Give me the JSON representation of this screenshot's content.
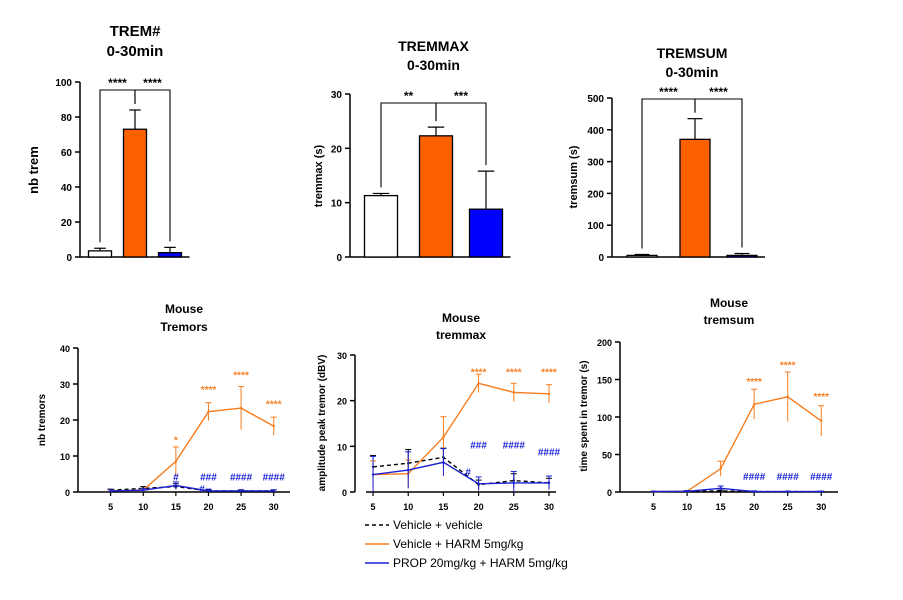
{
  "colors": {
    "vehicle": "#000000",
    "harm": "#f77d1f",
    "harm_bar": "#fd6000",
    "prop": "#1a20d3",
    "prop_bar": "#0000ff"
  },
  "legend": {
    "items": [
      {
        "label": "Vehicle + vehicle",
        "style": "dashed",
        "color_key": "vehicle"
      },
      {
        "label": "Vehicle + HARM 5mg/kg",
        "style": "solid",
        "color_key": "harm"
      },
      {
        "label": "PROP 20mg/kg + HARM 5mg/kg",
        "style": "solid",
        "color_key": "prop"
      }
    ]
  },
  "chart_data": [
    {
      "type": "bar",
      "title": "TREM#",
      "subtitle": "0-30min",
      "ylabel": "nb trem",
      "ylim": [
        0,
        100
      ],
      "yticks": [
        0,
        20,
        40,
        60,
        80,
        100
      ],
      "ytick_labels": [
        "0",
        "20",
        "40",
        "60",
        "80",
        "100"
      ],
      "bars": [
        {
          "value": 3.5,
          "error": 1.5,
          "color_key": "white"
        },
        {
          "value": 73,
          "error": 11,
          "color_key": "harm_bar"
        },
        {
          "value": 2.5,
          "error": 3,
          "color_key": "prop_bar"
        }
      ],
      "brackets": [
        {
          "from": 0,
          "to": 1,
          "label": "****"
        },
        {
          "from": 1,
          "to": 2,
          "label": "****"
        }
      ]
    },
    {
      "type": "bar",
      "title": "TREMMAX",
      "subtitle": "0-30min",
      "ylabel": "tremmax (s)",
      "ylim": [
        0,
        30
      ],
      "yticks": [
        0,
        10,
        20,
        30
      ],
      "ytick_labels": [
        "0",
        "10",
        "20",
        "30"
      ],
      "bars": [
        {
          "value": 11.3,
          "error": 0.4,
          "color_key": "white"
        },
        {
          "value": 22.3,
          "error": 1.6,
          "color_key": "harm_bar"
        },
        {
          "value": 8.8,
          "error": 7,
          "color_key": "prop_bar"
        }
      ],
      "brackets": [
        {
          "from": 0,
          "to": 1,
          "label": "**"
        },
        {
          "from": 1,
          "to": 2,
          "label": "***"
        }
      ]
    },
    {
      "type": "bar",
      "title": "TREMSUM",
      "subtitle": "0-30min",
      "ylabel": "tremsum (s)",
      "ylim": [
        0,
        500
      ],
      "yticks": [
        0,
        100,
        200,
        300,
        400,
        500
      ],
      "ytick_labels": [
        "0",
        "100",
        "200",
        "300",
        "400",
        "500"
      ],
      "bars": [
        {
          "value": 5,
          "error": 3,
          "color_key": "white"
        },
        {
          "value": 370,
          "error": 65,
          "color_key": "harm_bar"
        },
        {
          "value": 5,
          "error": 6,
          "color_key": "prop_bar"
        }
      ],
      "brackets": [
        {
          "from": 0,
          "to": 1,
          "label": "****"
        },
        {
          "from": 1,
          "to": 2,
          "label": "****"
        }
      ]
    },
    {
      "type": "line",
      "title": "Mouse",
      "subtitle": "Tremors",
      "ylabel": "nb tremors",
      "x": [
        5,
        10,
        15,
        20,
        25,
        30
      ],
      "xlim": [
        0,
        32.5
      ],
      "ylim": [
        0,
        40
      ],
      "xticks": [
        5,
        10,
        15,
        20,
        25,
        30
      ],
      "xtick_labels": [
        "5",
        "10",
        "15",
        "20",
        "25",
        "30"
      ],
      "yticks": [
        0,
        10,
        20,
        30,
        40
      ],
      "ytick_labels": [
        "0",
        "10",
        "20",
        "30",
        "40"
      ],
      "series": [
        {
          "color_key": "vehicle",
          "dashed": true,
          "values": [
            0.5,
            1,
            1.5,
            0.3,
            0.3,
            0.3
          ],
          "errors": [
            0.3,
            0.5,
            0.8,
            0.3,
            0.3,
            0.3
          ]
        },
        {
          "color_key": "harm",
          "dashed": false,
          "values": [
            0.3,
            0.5,
            8.5,
            22.3,
            23.3,
            18.3
          ],
          "errors": [
            0.3,
            0.5,
            4,
            2.5,
            6,
            2.5
          ]
        },
        {
          "color_key": "prop",
          "dashed": false,
          "values": [
            0.3,
            0.5,
            1.8,
            0.3,
            0.3,
            0.3
          ],
          "errors": [
            0.3,
            0.5,
            1,
            0.5,
            0.3,
            0.3
          ]
        }
      ],
      "annotations": [
        {
          "x": 15,
          "y": 13.5,
          "text": "*",
          "color_key": "harm"
        },
        {
          "x": 20,
          "y": 27.5,
          "text": "****",
          "color_key": "harm"
        },
        {
          "x": 25,
          "y": 31.5,
          "text": "****",
          "color_key": "harm"
        },
        {
          "x": 30,
          "y": 23.5,
          "text": "****",
          "color_key": "harm"
        },
        {
          "x": 15,
          "y": 3.2,
          "text": "#",
          "color_key": "prop"
        },
        {
          "x": 20,
          "y": 3.2,
          "text": "###",
          "color_key": "prop"
        },
        {
          "x": 25,
          "y": 3.2,
          "text": "####",
          "color_key": "prop"
        },
        {
          "x": 30,
          "y": 3.2,
          "text": "####",
          "color_key": "prop"
        },
        {
          "x": 19,
          "y": -0.2,
          "text": "#",
          "color_key": "prop"
        }
      ]
    },
    {
      "type": "line",
      "title": "Mouse",
      "subtitle": "tremmax",
      "ylabel": "amplitude peak tremor (dBV)",
      "x": [
        5,
        10,
        15,
        20,
        25,
        30
      ],
      "xlim": [
        4,
        31
      ],
      "ylim": [
        0,
        30
      ],
      "xticks": [
        5,
        10,
        15,
        20,
        25,
        30
      ],
      "xtick_labels": [
        "5",
        "10",
        "15",
        "20",
        "25",
        "30"
      ],
      "yticks": [
        0,
        10,
        20,
        30
      ],
      "ytick_labels": [
        "0",
        "10",
        "20",
        "30"
      ],
      "series": [
        {
          "color_key": "vehicle",
          "dashed": true,
          "values": [
            5.5,
            6.3,
            7.6,
            1.6,
            2.5,
            2.0
          ],
          "errors": [
            2.5,
            3,
            2,
            1,
            1.5,
            1
          ]
        },
        {
          "color_key": "harm",
          "dashed": false,
          "values": [
            3.8,
            4.0,
            12.0,
            23.8,
            21.8,
            21.5
          ],
          "errors": [
            3,
            3,
            4.5,
            2,
            2,
            2
          ]
        },
        {
          "color_key": "prop",
          "dashed": false,
          "values": [
            3.8,
            4.8,
            6.5,
            1.8,
            2.0,
            2.0
          ],
          "errors": [
            4,
            4,
            3,
            1.5,
            2.5,
            1.5
          ]
        }
      ],
      "annotations": [
        {
          "x": 20,
          "y": 25.5,
          "text": "****",
          "color_key": "harm"
        },
        {
          "x": 25,
          "y": 25.5,
          "text": "****",
          "color_key": "harm"
        },
        {
          "x": 30,
          "y": 25.5,
          "text": "****",
          "color_key": "harm"
        },
        {
          "x": 20,
          "y": 9.5,
          "text": "###",
          "color_key": "prop"
        },
        {
          "x": 25,
          "y": 9.5,
          "text": "####",
          "color_key": "prop"
        },
        {
          "x": 30,
          "y": 8.0,
          "text": "####",
          "color_key": "prop"
        },
        {
          "x": 18.5,
          "y": 3.6,
          "text": "#",
          "color_key": "prop"
        }
      ]
    },
    {
      "type": "line",
      "title": "Mouse",
      "subtitle": "tremsum",
      "ylabel": "time spent in tremor (s)",
      "x": [
        5,
        10,
        15,
        20,
        25,
        30
      ],
      "xlim": [
        0,
        32.5
      ],
      "ylim": [
        0,
        200
      ],
      "xticks": [
        5,
        10,
        15,
        20,
        25,
        30
      ],
      "xtick_labels": [
        "5",
        "10",
        "15",
        "20",
        "25",
        "30"
      ],
      "yticks": [
        0,
        50,
        100,
        150,
        200
      ],
      "ytick_labels": [
        "0",
        "50",
        "100",
        "150",
        "200"
      ],
      "series": [
        {
          "color_key": "vehicle",
          "dashed": true,
          "values": [
            0.5,
            1,
            1.5,
            0.5,
            0.5,
            0.5
          ],
          "errors": [
            0.5,
            0.5,
            1,
            0.5,
            0.5,
            0.5
          ]
        },
        {
          "color_key": "harm",
          "dashed": false,
          "values": [
            0.5,
            1,
            31,
            117,
            127,
            95
          ],
          "errors": [
            0.5,
            1,
            10,
            20,
            33,
            20
          ]
        },
        {
          "color_key": "prop",
          "dashed": false,
          "values": [
            0.5,
            1,
            5,
            0.5,
            0.5,
            0.5
          ],
          "errors": [
            0.5,
            1,
            3,
            1,
            0.5,
            0.5
          ]
        }
      ],
      "annotations": [
        {
          "x": 20,
          "y": 143,
          "text": "****",
          "color_key": "harm"
        },
        {
          "x": 25,
          "y": 165,
          "text": "****",
          "color_key": "harm"
        },
        {
          "x": 30,
          "y": 123,
          "text": "****",
          "color_key": "harm"
        },
        {
          "x": 20,
          "y": 16,
          "text": "####",
          "color_key": "prop"
        },
        {
          "x": 25,
          "y": 16,
          "text": "####",
          "color_key": "prop"
        },
        {
          "x": 30,
          "y": 16,
          "text": "####",
          "color_key": "prop"
        }
      ]
    }
  ]
}
